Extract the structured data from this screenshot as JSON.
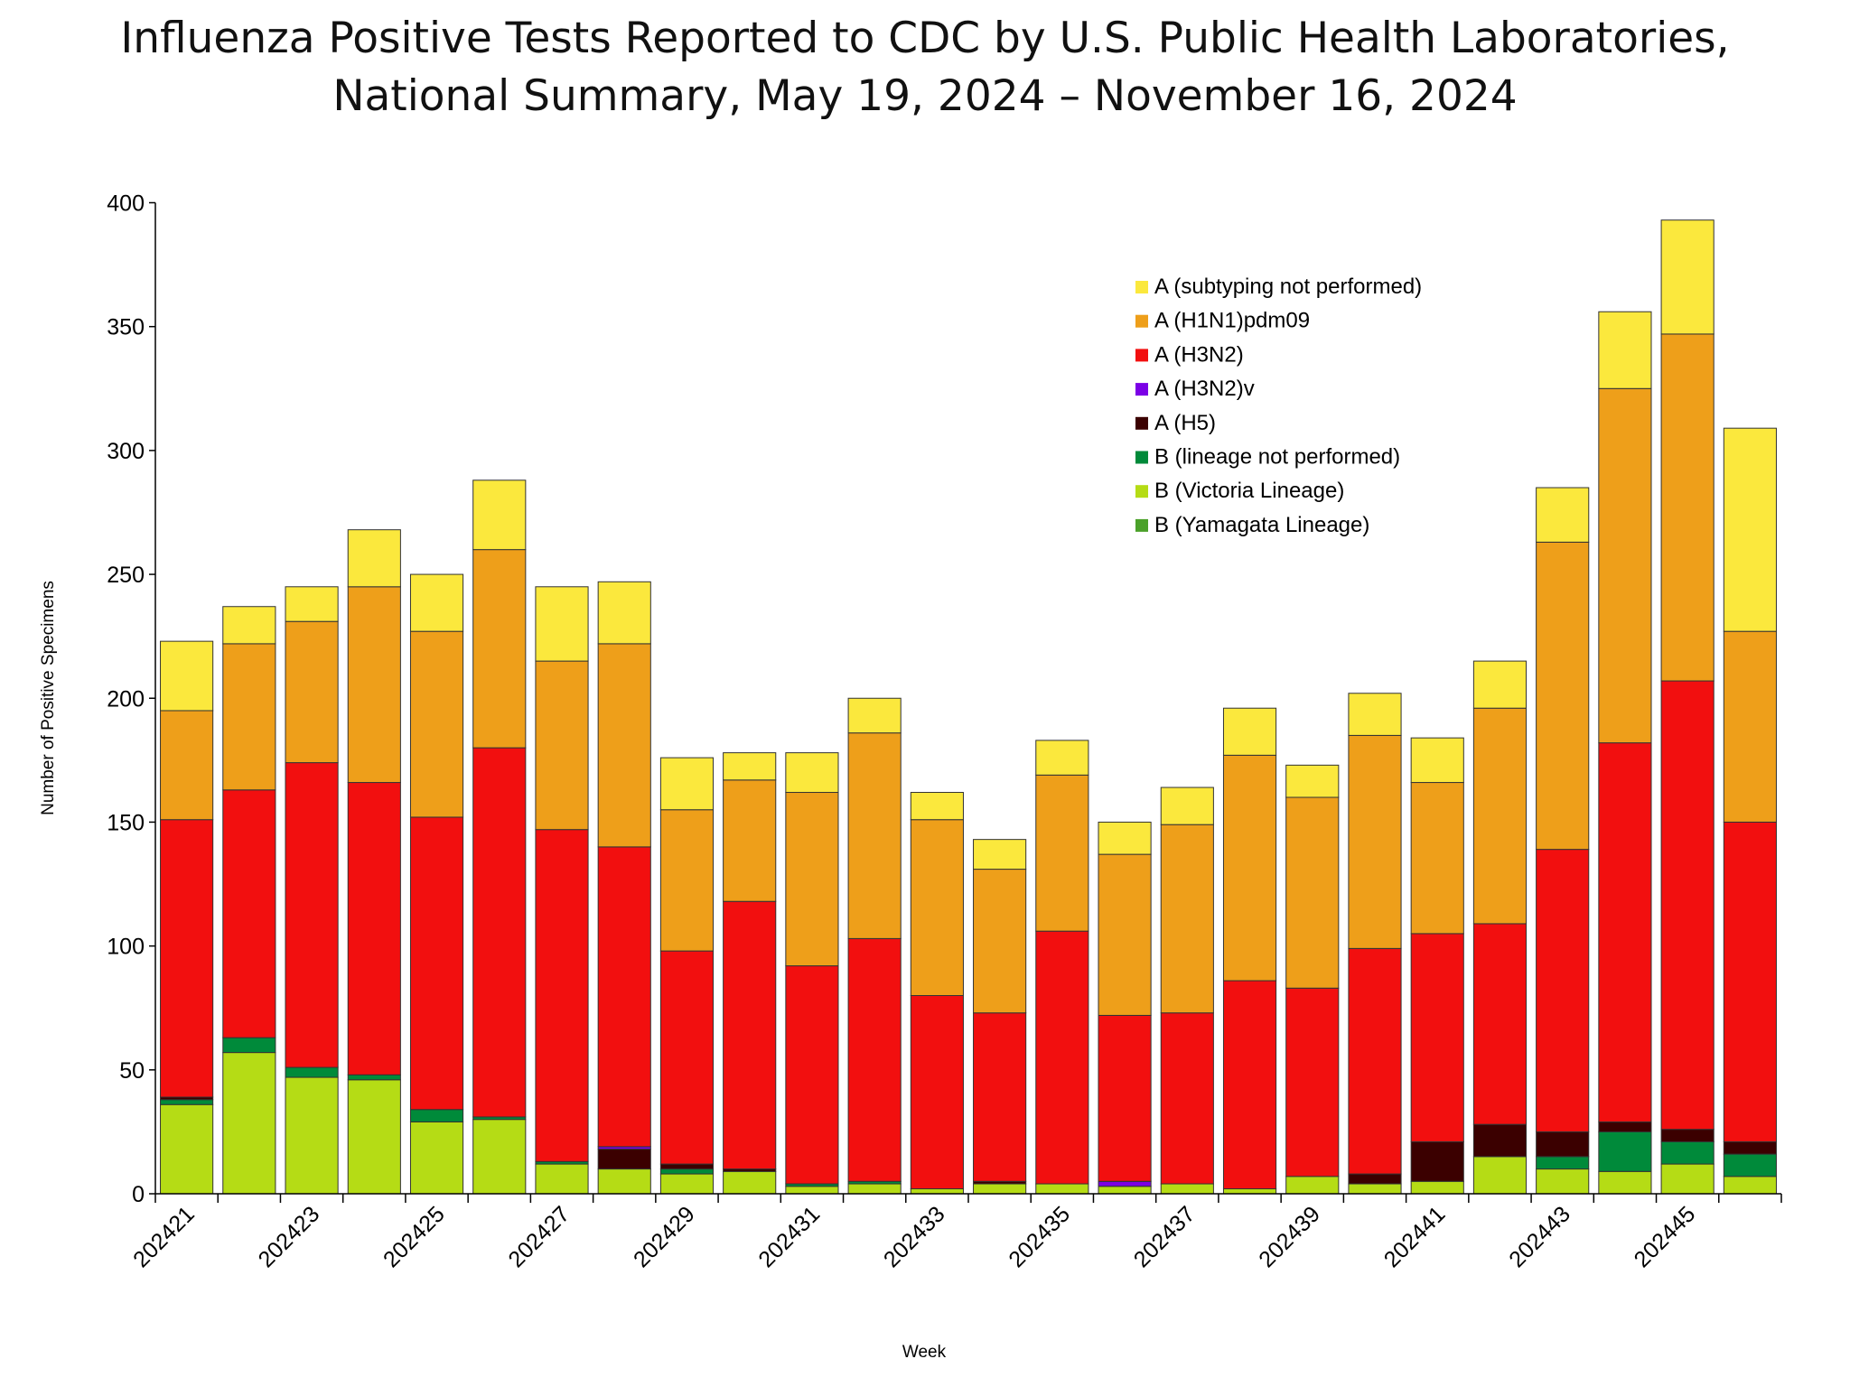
{
  "chart_data": {
    "type": "bar",
    "stacked": true,
    "title": [
      "Influenza Positive Tests Reported to CDC by U.S. Public Health Laboratories,",
      "National Summary, May 19, 2024 – November 16, 2024"
    ],
    "xlabel": "Week",
    "ylabel": "Number of Positive Specimens",
    "ylim": [
      0,
      400
    ],
    "yticks": [
      0,
      50,
      100,
      150,
      200,
      250,
      300,
      350,
      400
    ],
    "grid": false,
    "legend_position": "top-right",
    "categories": [
      "202421",
      "202422",
      "202423",
      "202424",
      "202425",
      "202426",
      "202427",
      "202428",
      "202429",
      "202430",
      "202431",
      "202432",
      "202433",
      "202434",
      "202435",
      "202436",
      "202437",
      "202438",
      "202439",
      "202440",
      "202441",
      "202442",
      "202443",
      "202444",
      "202445",
      "202446"
    ],
    "xtick_labels": [
      "202421",
      "202423",
      "202425",
      "202427",
      "202429",
      "202431",
      "202433",
      "202435",
      "202437",
      "202439",
      "202441",
      "202443",
      "202445"
    ],
    "series": [
      {
        "name": "B (Yamagata Lineage)",
        "color": "#4BA12A",
        "values": [
          0,
          0,
          0,
          0,
          0,
          0,
          0,
          0,
          0,
          0,
          0,
          0,
          0,
          0,
          0,
          0,
          0,
          0,
          0,
          0,
          0,
          0,
          0,
          0,
          0,
          0
        ]
      },
      {
        "name": "B (Victoria Lineage)",
        "color": "#B5DC15",
        "values": [
          36,
          57,
          47,
          46,
          29,
          30,
          12,
          10,
          8,
          9,
          3,
          4,
          2,
          4,
          4,
          3,
          4,
          2,
          7,
          4,
          5,
          15,
          10,
          9,
          12,
          7
        ]
      },
      {
        "name": "B (lineage not performed)",
        "color": "#008A3A",
        "values": [
          2,
          6,
          4,
          2,
          5,
          1,
          1,
          0,
          2,
          0,
          1,
          1,
          0,
          0,
          0,
          0,
          0,
          0,
          0,
          0,
          0,
          0,
          5,
          16,
          9,
          9
        ]
      },
      {
        "name": "A (H5)",
        "color": "#3B0000",
        "values": [
          1,
          0,
          0,
          0,
          0,
          0,
          0,
          8,
          2,
          1,
          0,
          0,
          0,
          1,
          0,
          0,
          0,
          0,
          0,
          4,
          16,
          13,
          10,
          4,
          5,
          5
        ]
      },
      {
        "name": "A (H3N2)v",
        "color": "#7B00E6",
        "values": [
          0,
          0,
          0,
          0,
          0,
          0,
          0,
          1,
          0,
          0,
          0,
          0,
          0,
          0,
          0,
          2,
          0,
          0,
          0,
          0,
          0,
          0,
          0,
          0,
          0,
          0
        ]
      },
      {
        "name": "A (H3N2)",
        "color": "#F20F0F",
        "values": [
          112,
          100,
          123,
          118,
          118,
          149,
          134,
          121,
          86,
          108,
          88,
          98,
          78,
          68,
          102,
          67,
          69,
          84,
          76,
          91,
          84,
          81,
          114,
          153,
          181,
          129
        ]
      },
      {
        "name": "A (H1N1)pdm09",
        "color": "#EE9F1A",
        "values": [
          44,
          59,
          57,
          79,
          75,
          80,
          68,
          82,
          57,
          49,
          70,
          83,
          71,
          58,
          63,
          65,
          76,
          91,
          77,
          86,
          61,
          87,
          124,
          143,
          140,
          77
        ]
      },
      {
        "name": "A (subtyping not performed)",
        "color": "#FBE83D",
        "values": [
          28,
          15,
          14,
          23,
          23,
          28,
          30,
          25,
          21,
          11,
          16,
          14,
          11,
          12,
          14,
          13,
          15,
          19,
          13,
          17,
          18,
          19,
          22,
          31,
          46,
          82
        ]
      }
    ],
    "legend_order": [
      "A (subtyping not performed)",
      "A (H1N1)pdm09",
      "A (H3N2)",
      "A (H3N2)v",
      "A (H5)",
      "B (lineage not performed)",
      "B (Victoria Lineage)",
      "B (Yamagata Lineage)"
    ]
  }
}
